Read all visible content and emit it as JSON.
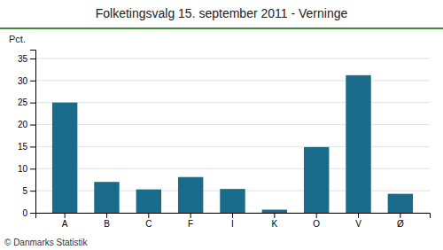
{
  "chart_data": {
    "type": "bar",
    "title": "Folketingsvalg 15. september 2011 - Verninge",
    "ylabel": "Pct.",
    "footer": "© Danmarks Statistik",
    "categories": [
      "A",
      "B",
      "C",
      "F",
      "I",
      "K",
      "O",
      "V",
      "Ø"
    ],
    "values": [
      25.0,
      7.0,
      5.3,
      8.1,
      5.4,
      0.7,
      14.9,
      31.2,
      4.3
    ],
    "color": "#1a6b8a",
    "ylim": [
      0,
      37
    ],
    "yticks": [
      0,
      5,
      10,
      15,
      20,
      25,
      30,
      35
    ],
    "grid": true
  }
}
